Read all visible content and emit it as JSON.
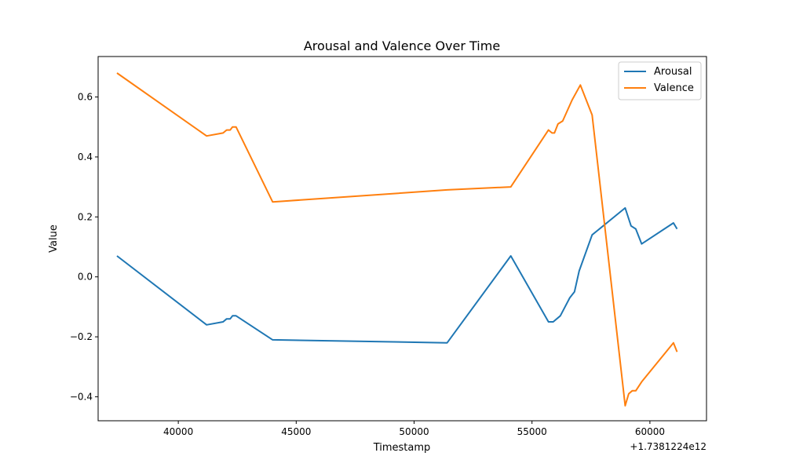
{
  "chart_data": {
    "type": "line",
    "title": "Arousal and Valence Over Time",
    "xlabel": "Timestamp",
    "ylabel": "Value",
    "x_offset_label": "+1.7381224e12",
    "xlim": [
      36600,
      62400
    ],
    "ylim": [
      -0.48,
      0.735
    ],
    "x_ticks": [
      40000,
      45000,
      50000,
      55000,
      60000
    ],
    "x_tick_labels": [
      "40000",
      "45000",
      "50000",
      "55000",
      "60000"
    ],
    "y_ticks": [
      -0.4,
      -0.2,
      0.0,
      0.2,
      0.4,
      0.6
    ],
    "y_tick_labels": [
      "−0.4",
      "−0.2",
      "0.0",
      "0.2",
      "0.4",
      "0.6"
    ],
    "grid": false,
    "legend_position": "top-right",
    "series": [
      {
        "name": "Arousal",
        "color": "#1f77b4",
        "points": [
          [
            37400,
            0.07
          ],
          [
            41200,
            -0.16
          ],
          [
            41900,
            -0.15
          ],
          [
            42050,
            -0.14
          ],
          [
            42200,
            -0.14
          ],
          [
            42300,
            -0.13
          ],
          [
            42450,
            -0.13
          ],
          [
            44000,
            -0.21
          ],
          [
            51400,
            -0.22
          ],
          [
            54100,
            0.07
          ],
          [
            55700,
            -0.15
          ],
          [
            55900,
            -0.15
          ],
          [
            56200,
            -0.13
          ],
          [
            56600,
            -0.07
          ],
          [
            56800,
            -0.05
          ],
          [
            57000,
            0.02
          ],
          [
            57550,
            0.14
          ],
          [
            58950,
            0.23
          ],
          [
            59200,
            0.17
          ],
          [
            59400,
            0.16
          ],
          [
            59650,
            0.11
          ],
          [
            61000,
            0.18
          ],
          [
            61150,
            0.16
          ]
        ]
      },
      {
        "name": "Valence",
        "color": "#ff7f0e",
        "points": [
          [
            37400,
            0.68
          ],
          [
            41200,
            0.47
          ],
          [
            41900,
            0.48
          ],
          [
            42050,
            0.49
          ],
          [
            42200,
            0.49
          ],
          [
            42300,
            0.5
          ],
          [
            42450,
            0.5
          ],
          [
            44000,
            0.25
          ],
          [
            51400,
            0.29
          ],
          [
            54100,
            0.3
          ],
          [
            55700,
            0.49
          ],
          [
            55850,
            0.48
          ],
          [
            55950,
            0.48
          ],
          [
            56100,
            0.51
          ],
          [
            56300,
            0.52
          ],
          [
            56700,
            0.59
          ],
          [
            57050,
            0.64
          ],
          [
            57550,
            0.54
          ],
          [
            58950,
            -0.43
          ],
          [
            59100,
            -0.39
          ],
          [
            59250,
            -0.38
          ],
          [
            59400,
            -0.38
          ],
          [
            59650,
            -0.35
          ],
          [
            61000,
            -0.22
          ],
          [
            61150,
            -0.25
          ]
        ]
      }
    ]
  }
}
